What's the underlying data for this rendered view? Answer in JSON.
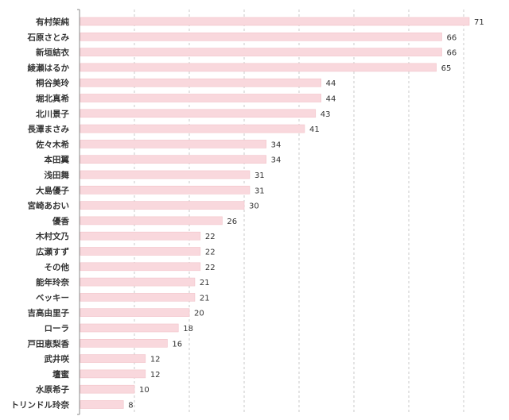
{
  "chart_data": {
    "type": "bar",
    "orientation": "horizontal",
    "categories": [
      "有村架純",
      "石原さとみ",
      "新垣結衣",
      "綾瀬はるか",
      "桐谷美玲",
      "堀北真希",
      "北川景子",
      "長澤まさみ",
      "佐々木希",
      "本田翼",
      "浅田舞",
      "大島優子",
      "宮崎あおい",
      "優香",
      "木村文乃",
      "広瀬すず",
      "その他",
      "能年玲奈",
      "ベッキー",
      "吉高由里子",
      "ローラ",
      "戸田恵梨香",
      "武井咲",
      "壇蜜",
      "水原希子",
      "トリンドル玲奈"
    ],
    "values": [
      71,
      66,
      66,
      65,
      44,
      44,
      43,
      41,
      34,
      34,
      31,
      31,
      30,
      26,
      22,
      22,
      22,
      21,
      21,
      20,
      18,
      16,
      12,
      12,
      10,
      8
    ],
    "xlim": [
      0,
      72
    ],
    "grid": true,
    "bar_color": "#f9d8dd",
    "bar_border_color": "#f2c2c9"
  }
}
